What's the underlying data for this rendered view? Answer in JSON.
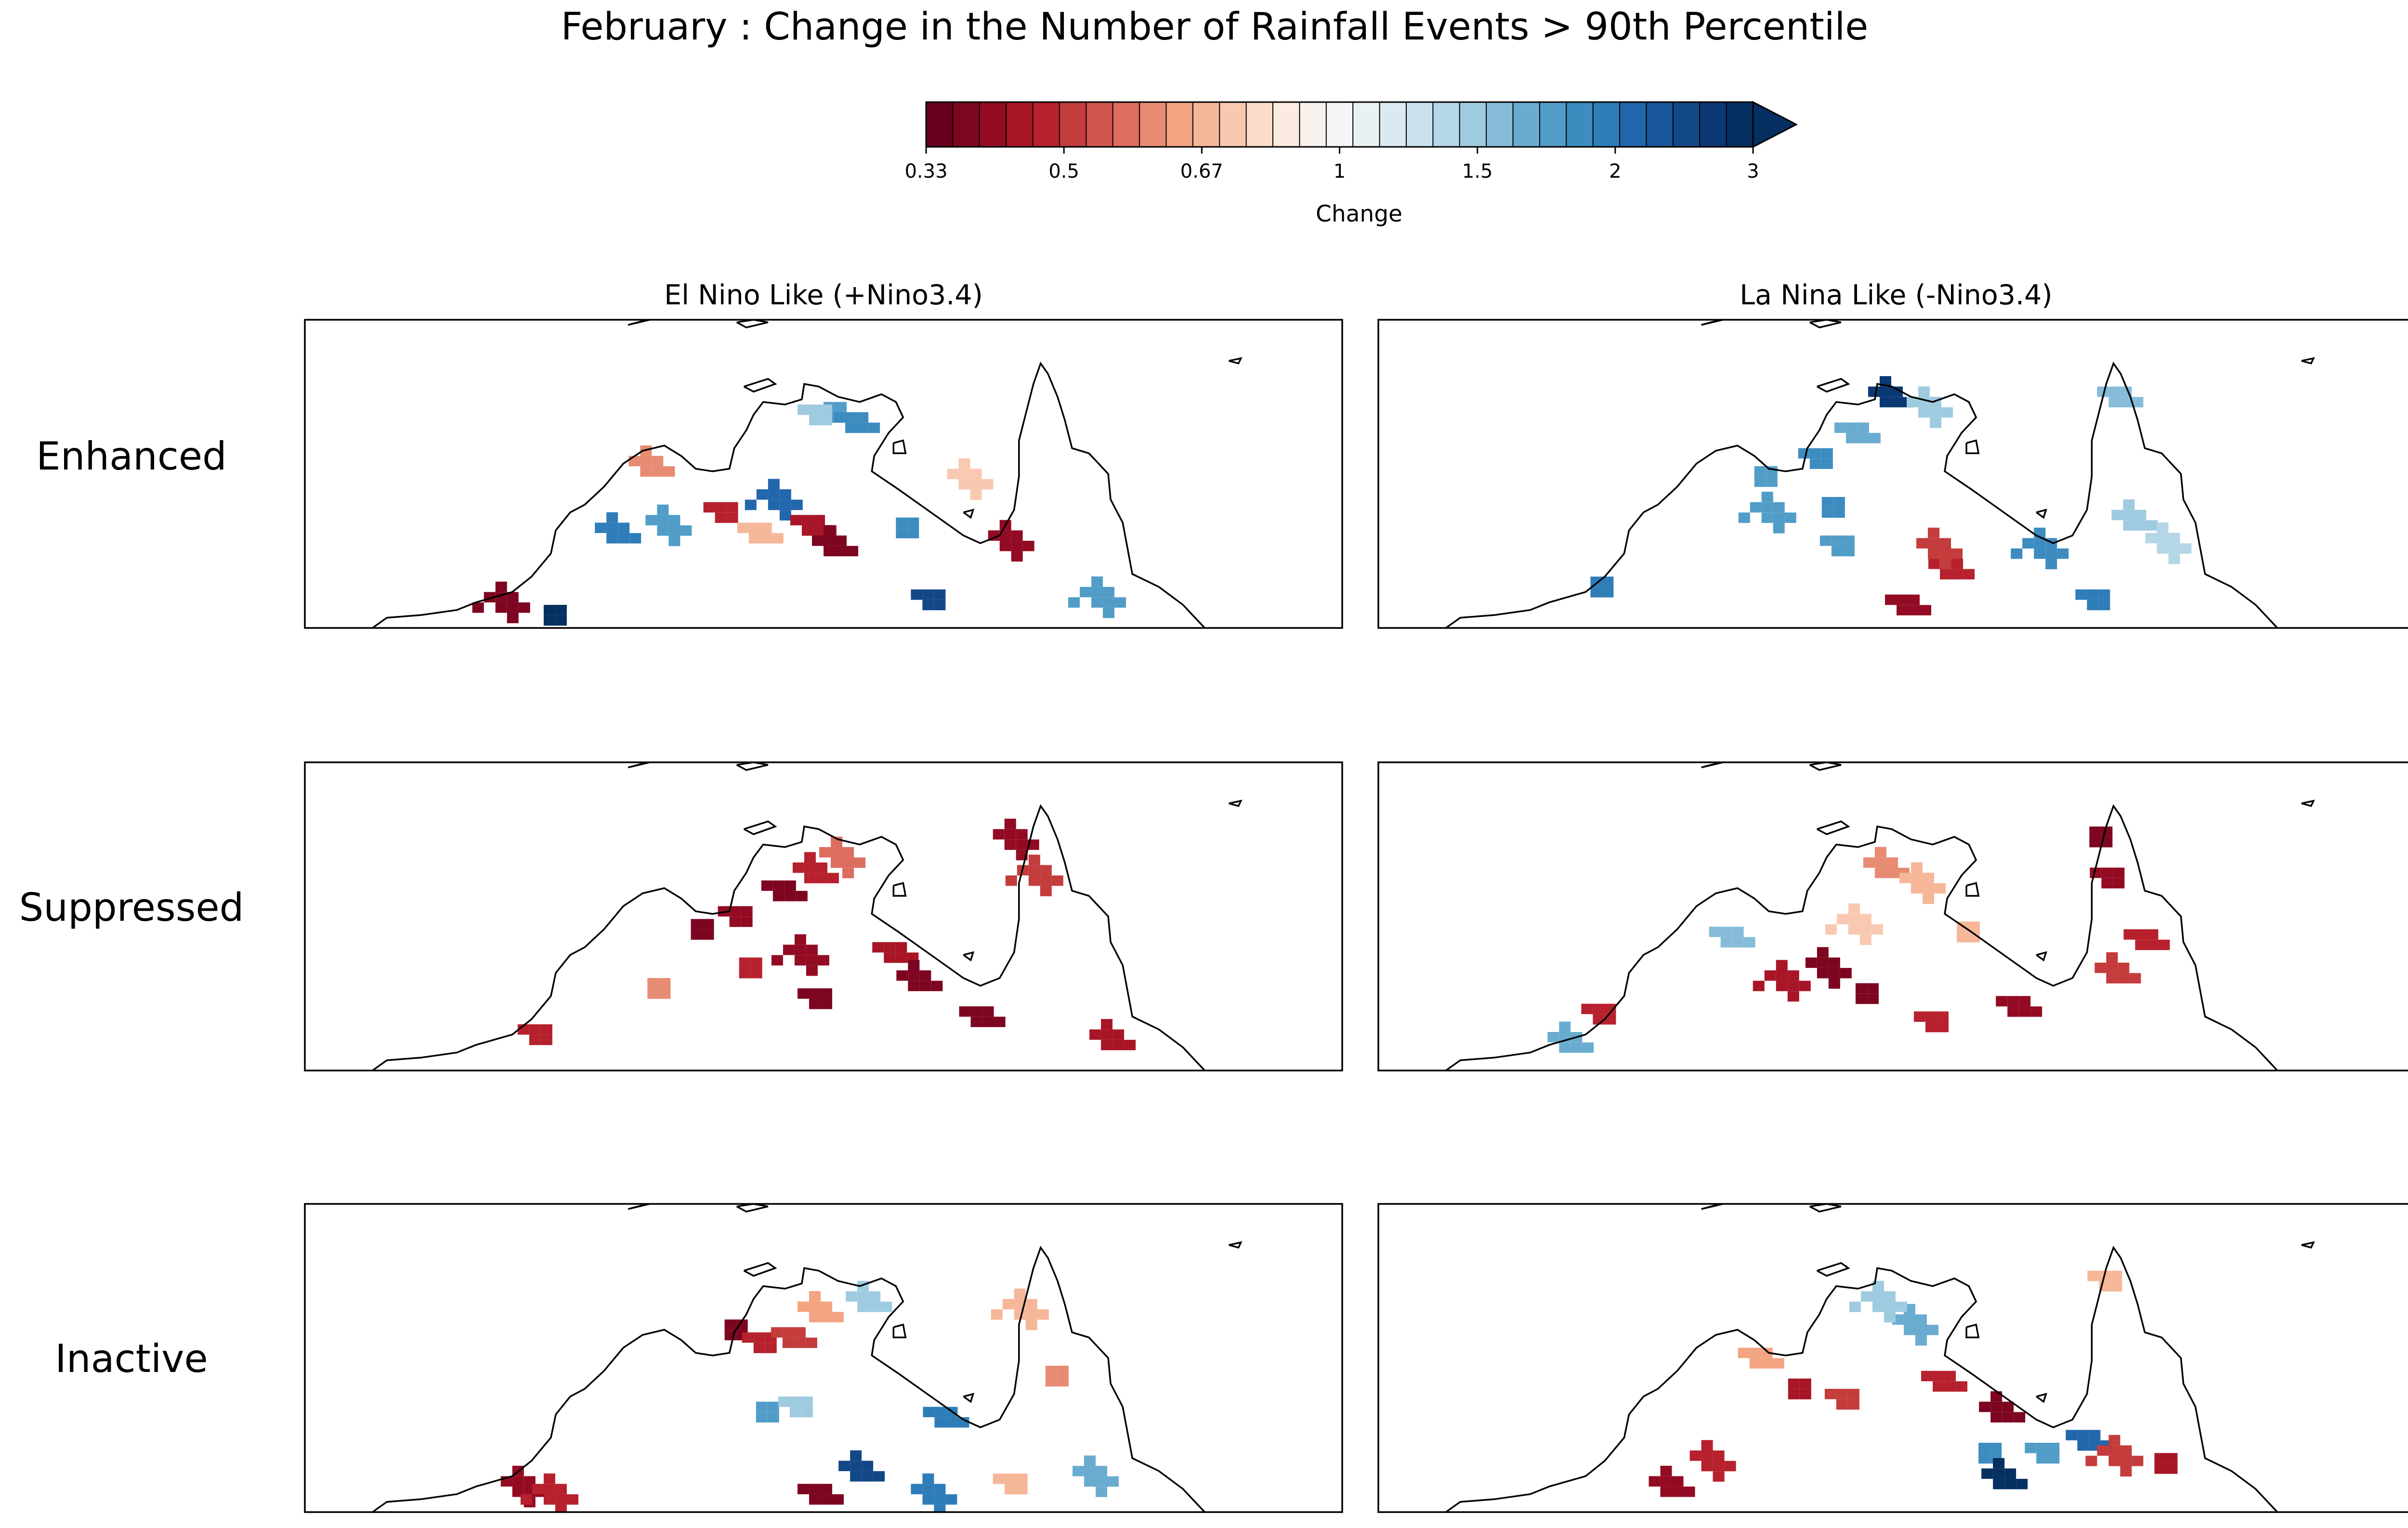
{
  "title": "February : Change in the Number of Rainfall Events > 90th Percentile",
  "colorbar": {
    "label": "Change",
    "ticks": [
      "0.33",
      "0.5",
      "0.67",
      "1",
      "1.5",
      "2",
      "3"
    ],
    "extend": "max",
    "colors": [
      "#67001f",
      "#7d0520",
      "#930b23",
      "#a81527",
      "#b7202d",
      "#c43c3c",
      "#d0554e",
      "#dc6d5f",
      "#e78b73",
      "#f3a482",
      "#f6b799",
      "#f8c9b0",
      "#fadcc8",
      "#fcebe1",
      "#f9f1ed",
      "#f3f5f6",
      "#e9f1f4",
      "#dbeaf2",
      "#cae1ed",
      "#b4d6e7",
      "#9fcbe1",
      "#86bcda",
      "#6aacd0",
      "#519dc8",
      "#3c8cc0",
      "#2f7db8",
      "#2266ac",
      "#1a579a",
      "#134887",
      "#0b3873",
      "#053061"
    ]
  },
  "columns": [
    "El Nino Like (+Nino3.4)",
    "La Nina Like (-Nino3.4)"
  ],
  "rows": [
    "Enhanced",
    "Suppressed",
    "Inactive"
  ],
  "chart_data": {
    "type": "heatmap",
    "region": "Northern Australia",
    "value": "Change in the Number of Rainfall Events > 90th Percentile",
    "scale_range": [
      0.33,
      3
    ],
    "panels": [
      {
        "row": "Enhanced",
        "column": "El Nino Like (+Nino3.4)",
        "dominant_change": "mixed",
        "blocks": [
          {
            "lon": 133.5,
            "lat": -12.2,
            "value": 1.7
          },
          {
            "lon": 132.9,
            "lat": -12.3,
            "value": 1.4
          },
          {
            "lon": 134.4,
            "lat": -12.6,
            "value": 1.9
          },
          {
            "lon": 124.5,
            "lat": -16.9,
            "value": 2.0
          },
          {
            "lon": 126.6,
            "lat": -16.6,
            "value": 1.8
          },
          {
            "lon": 131.2,
            "lat": -15.6,
            "value": 2.2
          },
          {
            "lon": 136.5,
            "lat": -16.7,
            "value": 1.9
          },
          {
            "lon": 129.0,
            "lat": -16.1,
            "value": 0.45
          },
          {
            "lon": 132.6,
            "lat": -16.6,
            "value": 0.42
          },
          {
            "lon": 133.5,
            "lat": -17.4,
            "value": 0.38
          },
          {
            "lon": 140.8,
            "lat": -17.2,
            "value": 0.4
          },
          {
            "lon": 119.9,
            "lat": -19.6,
            "value": 0.36
          },
          {
            "lon": 121.9,
            "lat": -20.1,
            "value": 2.8
          },
          {
            "lon": 137.6,
            "lat": -19.5,
            "value": 2.6
          },
          {
            "lon": 130.4,
            "lat": -16.9,
            "value": 0.7
          },
          {
            "lon": 125.9,
            "lat": -14.3,
            "value": 0.6
          },
          {
            "lon": 139.1,
            "lat": -14.8,
            "value": 0.75
          },
          {
            "lon": 144.6,
            "lat": -19.4,
            "value": 1.8
          }
        ]
      },
      {
        "row": "Enhanced",
        "column": "La Nina Like (-Nino3.4)",
        "dominant_change": "increase",
        "blocks": [
          {
            "lon": 127.6,
            "lat": -14.7,
            "value": 1.8
          },
          {
            "lon": 129.9,
            "lat": -14.0,
            "value": 1.9
          },
          {
            "lon": 131.4,
            "lat": -13.0,
            "value": 1.6
          },
          {
            "lon": 132.8,
            "lat": -11.6,
            "value": 2.7
          },
          {
            "lon": 134.4,
            "lat": -12.0,
            "value": 1.4
          },
          {
            "lon": 127.9,
            "lat": -16.1,
            "value": 1.7
          },
          {
            "lon": 130.4,
            "lat": -15.9,
            "value": 1.9
          },
          {
            "lon": 130.8,
            "lat": -17.4,
            "value": 1.8
          },
          {
            "lon": 142.3,
            "lat": -11.6,
            "value": 1.5
          },
          {
            "lon": 142.9,
            "lat": -16.4,
            "value": 1.4
          },
          {
            "lon": 144.3,
            "lat": -17.3,
            "value": 1.3
          },
          {
            "lon": 139.2,
            "lat": -17.5,
            "value": 1.9
          },
          {
            "lon": 120.8,
            "lat": -19.0,
            "value": 2.1
          },
          {
            "lon": 141.4,
            "lat": -19.5,
            "value": 2.0
          },
          {
            "lon": 133.5,
            "lat": -19.7,
            "value": 0.4
          },
          {
            "lon": 135.3,
            "lat": -18.3,
            "value": 0.45
          },
          {
            "lon": 134.8,
            "lat": -17.5,
            "value": 0.5
          }
        ]
      },
      {
        "row": "Suppressed",
        "column": "El Nino Like (+Nino3.4)",
        "dominant_change": "decrease",
        "blocks": [
          {
            "lon": 128.0,
            "lat": -15.1,
            "value": 0.37
          },
          {
            "lon": 129.6,
            "lat": -14.6,
            "value": 0.4
          },
          {
            "lon": 131.4,
            "lat": -13.6,
            "value": 0.38
          },
          {
            "lon": 132.7,
            "lat": -12.9,
            "value": 0.45
          },
          {
            "lon": 133.8,
            "lat": -12.3,
            "value": 0.55
          },
          {
            "lon": 132.3,
            "lat": -16.1,
            "value": 0.4
          },
          {
            "lon": 130.0,
            "lat": -16.6,
            "value": 0.45
          },
          {
            "lon": 132.9,
            "lat": -17.8,
            "value": 0.36
          },
          {
            "lon": 136.0,
            "lat": -16.0,
            "value": 0.42
          },
          {
            "lon": 137.0,
            "lat": -17.1,
            "value": 0.38
          },
          {
            "lon": 141.0,
            "lat": -11.6,
            "value": 0.4
          },
          {
            "lon": 142.0,
            "lat": -13.0,
            "value": 0.5
          },
          {
            "lon": 126.2,
            "lat": -17.4,
            "value": 0.6
          },
          {
            "lon": 121.3,
            "lat": -19.2,
            "value": 0.45
          },
          {
            "lon": 139.6,
            "lat": -18.5,
            "value": 0.37
          },
          {
            "lon": 145.0,
            "lat": -19.4,
            "value": 0.42
          }
        ]
      },
      {
        "row": "Suppressed",
        "column": "La Nina Like (-Nino3.4)",
        "dominant_change": "decrease",
        "blocks": [
          {
            "lon": 141.5,
            "lat": -11.5,
            "value": 0.36
          },
          {
            "lon": 142.0,
            "lat": -13.1,
            "value": 0.4
          },
          {
            "lon": 143.4,
            "lat": -15.5,
            "value": 0.45
          },
          {
            "lon": 142.2,
            "lat": -16.8,
            "value": 0.5
          },
          {
            "lon": 130.2,
            "lat": -16.6,
            "value": 0.38
          },
          {
            "lon": 128.5,
            "lat": -17.1,
            "value": 0.42
          },
          {
            "lon": 131.8,
            "lat": -17.6,
            "value": 0.36
          },
          {
            "lon": 134.7,
            "lat": -18.7,
            "value": 0.45
          },
          {
            "lon": 138.1,
            "lat": -18.1,
            "value": 0.4
          },
          {
            "lon": 132.6,
            "lat": -12.7,
            "value": 0.62
          },
          {
            "lon": 134.1,
            "lat": -13.3,
            "value": 0.7
          },
          {
            "lon": 131.5,
            "lat": -14.9,
            "value": 0.75
          },
          {
            "lon": 136.0,
            "lat": -15.2,
            "value": 0.72
          },
          {
            "lon": 120.9,
            "lat": -18.4,
            "value": 0.45
          },
          {
            "lon": 126.2,
            "lat": -15.4,
            "value": 1.5
          },
          {
            "lon": 119.5,
            "lat": -19.5,
            "value": 1.6
          }
        ]
      },
      {
        "row": "Inactive",
        "column": "El Nino Like (+Nino3.4)",
        "dominant_change": "mixed",
        "blocks": [
          {
            "lon": 129.4,
            "lat": -13.5,
            "value": 0.38
          },
          {
            "lon": 130.6,
            "lat": -14.0,
            "value": 0.45
          },
          {
            "lon": 131.8,
            "lat": -13.8,
            "value": 0.5
          },
          {
            "lon": 132.9,
            "lat": -12.8,
            "value": 0.65
          },
          {
            "lon": 120.6,
            "lat": -19.6,
            "value": 0.4
          },
          {
            "lon": 121.9,
            "lat": -19.9,
            "value": 0.45
          },
          {
            "lon": 130.7,
            "lat": -16.7,
            "value": 1.8
          },
          {
            "lon": 132.1,
            "lat": -16.5,
            "value": 1.4
          },
          {
            "lon": 138.1,
            "lat": -16.9,
            "value": 2.0
          },
          {
            "lon": 134.6,
            "lat": -19.0,
            "value": 2.6
          },
          {
            "lon": 137.6,
            "lat": -19.9,
            "value": 2.1
          },
          {
            "lon": 141.4,
            "lat": -12.7,
            "value": 0.7
          },
          {
            "lon": 142.7,
            "lat": -15.3,
            "value": 0.6
          },
          {
            "lon": 141.0,
            "lat": -19.5,
            "value": 0.72
          },
          {
            "lon": 132.9,
            "lat": -19.9,
            "value": 0.37
          },
          {
            "lon": 134.9,
            "lat": -12.4,
            "value": 1.4
          },
          {
            "lon": 144.3,
            "lat": -19.2,
            "value": 1.6
          }
        ]
      },
      {
        "row": "Inactive",
        "column": "La Nina Like (-Nino3.4)",
        "dominant_change": "mixed",
        "blocks": [
          {
            "lon": 129.0,
            "lat": -15.8,
            "value": 0.42
          },
          {
            "lon": 131.0,
            "lat": -16.2,
            "value": 0.5
          },
          {
            "lon": 135.0,
            "lat": -15.5,
            "value": 0.45
          },
          {
            "lon": 137.4,
            "lat": -16.7,
            "value": 0.38
          },
          {
            "lon": 133.8,
            "lat": -13.3,
            "value": 1.6
          },
          {
            "lon": 132.5,
            "lat": -12.4,
            "value": 1.4
          },
          {
            "lon": 136.9,
            "lat": -18.3,
            "value": 1.9
          },
          {
            "lon": 139.3,
            "lat": -18.3,
            "value": 1.8
          },
          {
            "lon": 141.0,
            "lat": -17.8,
            "value": 2.2
          },
          {
            "lon": 123.7,
            "lat": -19.6,
            "value": 0.4
          },
          {
            "lon": 125.4,
            "lat": -18.6,
            "value": 0.45
          },
          {
            "lon": 142.3,
            "lat": -18.4,
            "value": 0.5
          },
          {
            "lon": 144.2,
            "lat": -18.7,
            "value": 0.42
          },
          {
            "lon": 141.9,
            "lat": -11.6,
            "value": 0.7
          },
          {
            "lon": 127.4,
            "lat": -14.6,
            "value": 0.65
          },
          {
            "lon": 137.5,
            "lat": -19.3,
            "value": 2.9
          }
        ]
      }
    ]
  }
}
